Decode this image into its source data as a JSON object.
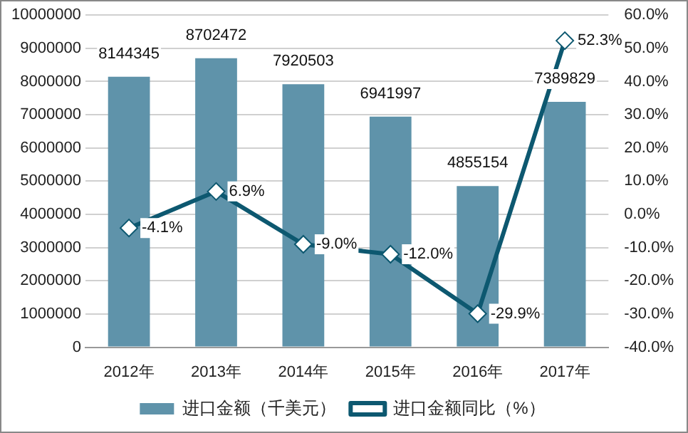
{
  "chart_data": {
    "type": "bar",
    "categories": [
      "2012年",
      "2013年",
      "2014年",
      "2015年",
      "2016年",
      "2017年"
    ],
    "series": [
      {
        "name": "进口金额（千美元）",
        "color": "#5f93aa",
        "values": [
          8144345,
          8702472,
          7920503,
          6941997,
          4855154,
          7389829
        ]
      },
      {
        "name": "进口金额同比（%）",
        "type": "line",
        "axis": "y2",
        "color": "#0d5870",
        "values": [
          -4.1,
          6.9,
          -9.0,
          -12.0,
          -29.9,
          52.3
        ],
        "value_labels": [
          "-4.1%",
          "6.9%",
          "-9.0%",
          "-12.0%",
          "-29.9%",
          "52.3%"
        ]
      }
    ],
    "data_labels": true,
    "ylim": [
      0,
      10000000
    ],
    "yticks": [
      0,
      1000000,
      2000000,
      3000000,
      4000000,
      5000000,
      6000000,
      7000000,
      8000000,
      9000000,
      10000000
    ],
    "y2lim": [
      -40,
      60
    ],
    "y2ticks": [
      {
        "value": -40,
        "label": "-40.0%"
      },
      {
        "value": -30,
        "label": "-30.0%"
      },
      {
        "value": -20,
        "label": "-20.0%"
      },
      {
        "value": -10,
        "label": "-10.0%"
      },
      {
        "value": 0,
        "label": "0.0%"
      },
      {
        "value": 10,
        "label": "10.0%"
      },
      {
        "value": 20,
        "label": "20.0%"
      },
      {
        "value": 30,
        "label": "30.0%"
      },
      {
        "value": 40,
        "label": "40.0%"
      },
      {
        "value": 50,
        "label": "50.0%"
      },
      {
        "value": 60,
        "label": "60.0%"
      }
    ],
    "grid": "y",
    "legend": "bottom",
    "marker": "diamond",
    "line_style": "solid"
  }
}
